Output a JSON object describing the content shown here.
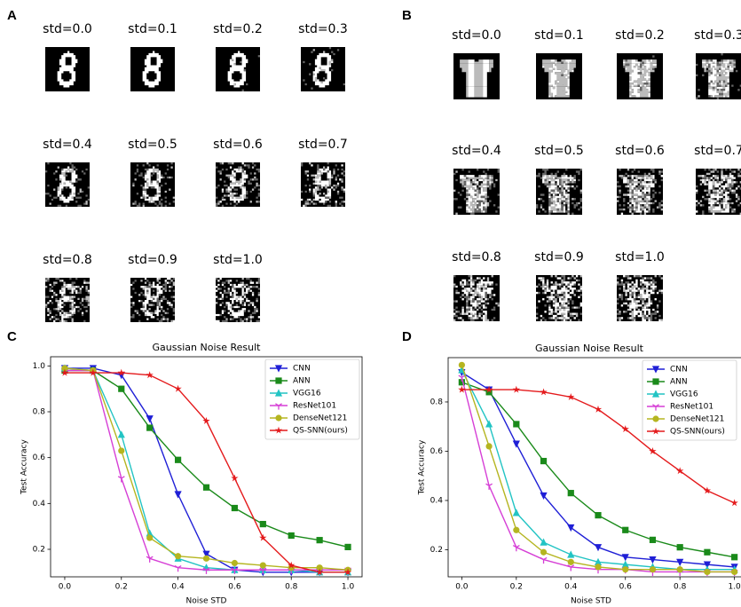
{
  "image_panels": [
    {
      "letter": "A",
      "labels": [
        "std=0.0",
        "std=0.1",
        "std=0.2",
        "std=0.3",
        "std=0.4",
        "std=0.5",
        "std=0.6",
        "std=0.7",
        "std=0.8",
        "std=0.9",
        "std=1.0"
      ]
    },
    {
      "letter": "B",
      "labels": [
        "std=0.0",
        "std=0.1",
        "std=0.2",
        "std=0.3",
        "std=0.4",
        "std=0.5",
        "std=0.6",
        "std=0.7",
        "std=0.8",
        "std=0.9",
        "std=1.0"
      ]
    }
  ],
  "chart_data": [
    {
      "type": "line",
      "panel": "C",
      "title": "Gaussian Noise Result",
      "x_label": "Noise STD",
      "y_label": "Test Accuracy",
      "x": [
        0,
        0.1,
        0.2,
        0.3,
        0.4,
        0.5,
        0.6,
        0.7,
        0.8,
        0.9,
        1.0
      ],
      "xlim": [
        -0.05,
        1.05
      ],
      "ylim": [
        0.08,
        1.04
      ],
      "xticks": [
        {
          "value": 0,
          "label": "0.0"
        },
        0.2,
        0.4,
        0.6,
        0.8,
        {
          "value": 1,
          "label": "1.0"
        }
      ],
      "yticks": [
        0.2,
        0.4,
        0.6,
        0.8,
        {
          "value": 1,
          "label": "1.0"
        }
      ],
      "grid": false,
      "legend": "upper right",
      "series": [
        {
          "name": "CNN",
          "color": "#1f1fd6",
          "marker": "triangle-down",
          "values": [
            0.99,
            0.99,
            0.96,
            0.77,
            0.44,
            0.18,
            0.11,
            0.1,
            0.1,
            0.1,
            0.1
          ]
        },
        {
          "name": "ANN",
          "color": "#1a8a1a",
          "marker": "square",
          "values": [
            0.98,
            0.98,
            0.9,
            0.73,
            0.59,
            0.47,
            0.38,
            0.31,
            0.26,
            0.24,
            0.21
          ]
        },
        {
          "name": "VGG16",
          "color": "#22c4c4",
          "marker": "triangle-up",
          "values": [
            0.99,
            0.98,
            0.7,
            0.27,
            0.16,
            0.12,
            0.11,
            0.11,
            0.11,
            0.1,
            0.1
          ]
        },
        {
          "name": "ResNet101",
          "color": "#d63fd6",
          "marker": "tri-down",
          "values": [
            0.98,
            0.98,
            0.51,
            0.16,
            0.12,
            0.11,
            0.11,
            0.11,
            0.11,
            0.11,
            0.11
          ]
        },
        {
          "name": "DenseNet121",
          "color": "#b5b520",
          "marker": "circle",
          "values": [
            0.99,
            0.98,
            0.63,
            0.25,
            0.17,
            0.16,
            0.14,
            0.13,
            0.12,
            0.12,
            0.11
          ]
        },
        {
          "name": "QS-SNN(ours)",
          "color": "#e41a1c",
          "marker": "star",
          "values": [
            0.97,
            0.97,
            0.97,
            0.96,
            0.9,
            0.76,
            0.51,
            0.25,
            0.13,
            0.1,
            0.1
          ]
        }
      ]
    },
    {
      "type": "line",
      "panel": "D",
      "title": "Gaussian Noise Result",
      "x_label": "Noise STD",
      "y_label": "Test Accuracy",
      "x": [
        0,
        0.1,
        0.2,
        0.3,
        0.4,
        0.5,
        0.6,
        0.7,
        0.8,
        0.9,
        1.0
      ],
      "xlim": [
        -0.05,
        1.05
      ],
      "ylim": [
        0.09,
        0.98
      ],
      "xticks": [
        {
          "value": 0,
          "label": "0.0"
        },
        0.2,
        0.4,
        0.6,
        0.8,
        {
          "value": 1,
          "label": "1.0"
        }
      ],
      "yticks": [
        0.2,
        0.4,
        0.6,
        0.8
      ],
      "grid": false,
      "legend": "upper right",
      "series": [
        {
          "name": "CNN",
          "color": "#1f1fd6",
          "marker": "triangle-down",
          "values": [
            0.92,
            0.85,
            0.63,
            0.42,
            0.29,
            0.21,
            0.17,
            0.16,
            0.15,
            0.14,
            0.13
          ]
        },
        {
          "name": "ANN",
          "color": "#1a8a1a",
          "marker": "square",
          "values": [
            0.88,
            0.84,
            0.71,
            0.56,
            0.43,
            0.34,
            0.28,
            0.24,
            0.21,
            0.19,
            0.17
          ]
        },
        {
          "name": "VGG16",
          "color": "#22c4c4",
          "marker": "triangle-up",
          "values": [
            0.93,
            0.71,
            0.35,
            0.23,
            0.18,
            0.15,
            0.14,
            0.13,
            0.12,
            0.12,
            0.12
          ]
        },
        {
          "name": "ResNet101",
          "color": "#d63fd6",
          "marker": "tri-down",
          "values": [
            0.9,
            0.46,
            0.21,
            0.16,
            0.13,
            0.12,
            0.12,
            0.11,
            0.11,
            0.11,
            0.11
          ]
        },
        {
          "name": "DenseNet121",
          "color": "#b5b520",
          "marker": "circle",
          "values": [
            0.95,
            0.62,
            0.28,
            0.19,
            0.15,
            0.13,
            0.12,
            0.12,
            0.12,
            0.11,
            0.11
          ]
        },
        {
          "name": "QS-SNN(ours)",
          "color": "#e41a1c",
          "marker": "star",
          "values": [
            0.85,
            0.85,
            0.85,
            0.84,
            0.82,
            0.77,
            0.69,
            0.6,
            0.52,
            0.44,
            0.39
          ]
        }
      ]
    }
  ]
}
